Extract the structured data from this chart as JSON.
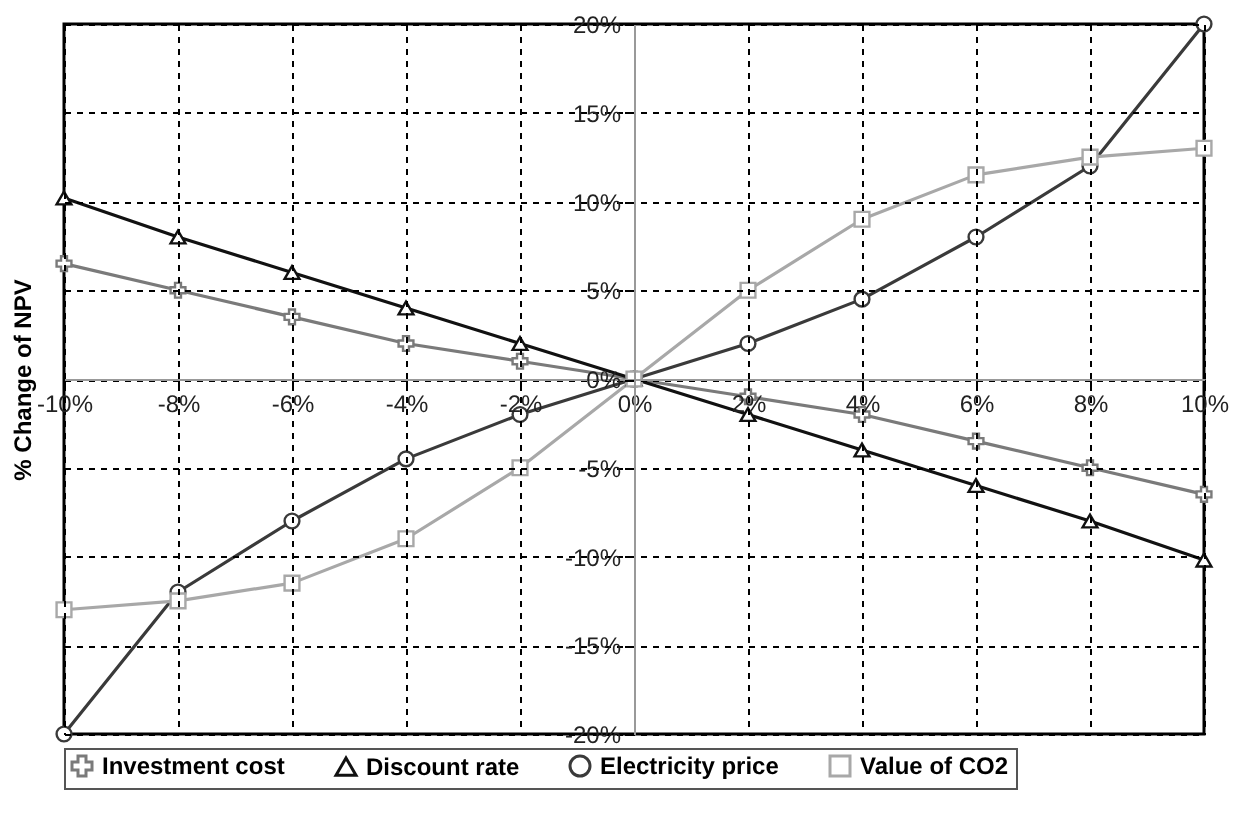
{
  "chart_data": {
    "type": "line",
    "ylabel": "% Change of NPV",
    "x": [
      -10,
      -8,
      -6,
      -4,
      -2,
      0,
      2,
      4,
      6,
      8,
      10
    ],
    "series": [
      {
        "name": "Investment cost",
        "color": "#7a7a7a",
        "marker": "cross",
        "values": [
          6.5,
          5,
          3.5,
          2,
          1,
          0,
          -1,
          -2,
          -3.5,
          -5,
          -6.5
        ]
      },
      {
        "name": "Discount rate",
        "color": "#111111",
        "marker": "triangle",
        "values": [
          10.2,
          8,
          6,
          4,
          2,
          0,
          -2,
          -4,
          -6,
          -8,
          -10.2
        ]
      },
      {
        "name": "Electricity price",
        "color": "#3a3a3a",
        "marker": "circle",
        "values": [
          -20,
          -12,
          -8,
          -4.5,
          -2,
          0,
          2,
          4.5,
          8,
          12,
          20
        ]
      },
      {
        "name": "Value of CO2",
        "color": "#a8a8a8",
        "marker": "square",
        "values": [
          -13,
          -12.5,
          -11.5,
          -9,
          -5,
          0,
          5,
          9,
          11.5,
          12.5,
          13
        ]
      }
    ],
    "xlim": [
      -10,
      10
    ],
    "xticks": [
      {
        "value": -10,
        "label": "-10%"
      },
      {
        "value": -8,
        "label": "-8%"
      },
      {
        "value": -6,
        "label": "-6%"
      },
      {
        "value": -4,
        "label": "-4%"
      },
      {
        "value": -2,
        "label": "-2%"
      },
      {
        "value": 0,
        "label": "0%"
      },
      {
        "value": 2,
        "label": "2%"
      },
      {
        "value": 4,
        "label": "4%"
      },
      {
        "value": 6,
        "label": "6%"
      },
      {
        "value": 8,
        "label": "8%"
      },
      {
        "value": 10,
        "label": "10%"
      }
    ],
    "ylim": [
      -20,
      20
    ],
    "yticks": [
      {
        "value": -20,
        "label": "-20%"
      },
      {
        "value": -15,
        "label": "-15%"
      },
      {
        "value": -10,
        "label": "-10%"
      },
      {
        "value": -5,
        "label": "-5%"
      },
      {
        "value": 0,
        "label": "0%"
      },
      {
        "value": 5,
        "label": "5%"
      },
      {
        "value": 10,
        "label": "10%"
      },
      {
        "value": 15,
        "label": "15%"
      },
      {
        "value": 20,
        "label": "20%"
      }
    ],
    "grid": true,
    "legend": "bottom",
    "line_style": "solid"
  }
}
